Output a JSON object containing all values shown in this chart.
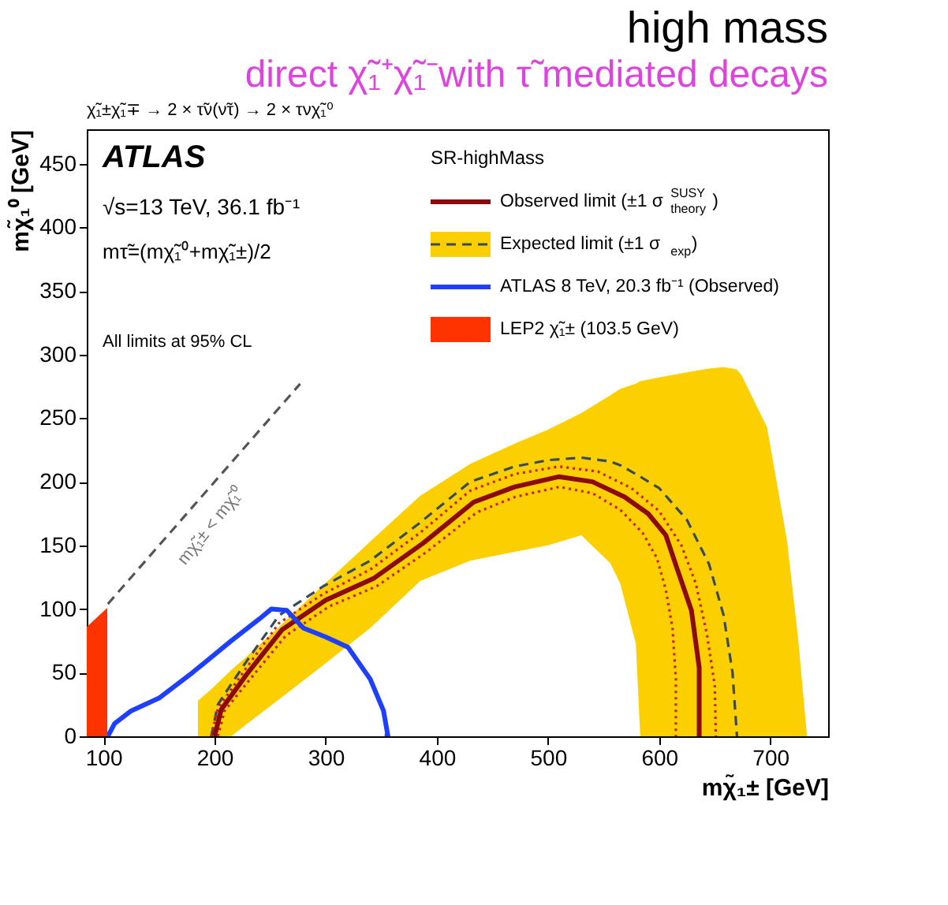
{
  "chart_data": {
    "type": "line",
    "title": "high mass",
    "subtitle": "direct χ̃₁⁺χ̃₁⁻with τ̃ mediated decays",
    "xlabel": "mχ̃₁± [GeV]",
    "ylabel": "mχ̃₁⁰ [GeV]",
    "legend_title": "SR-highMass",
    "legend": "top right",
    "xlim": [
      85,
      752
    ],
    "ylim": [
      0,
      477
    ],
    "xticks": [
      100,
      200,
      300,
      400,
      500,
      600,
      700
    ],
    "yticks": [
      0,
      50,
      100,
      150,
      200,
      250,
      300,
      350,
      400,
      450
    ],
    "grid": false,
    "annotations": [
      "χ̃₁±χ̃₁∓ → 2 × τ̃ν(ν̃τ) → 2 × τνχ̃₁⁰",
      "ATLAS",
      "√s=13 TeV, 36.1 fb⁻¹",
      "mτ̃=(mχ̃₁⁰+mχ̃₁±)/2",
      "All limits at 95% CL",
      "mχ̃₁± < mχ̃₁⁰"
    ],
    "series": [
      {
        "name": "Expected limit (±1 σ$_{exp}$)",
        "type": "line",
        "color": "#3a4a5a",
        "line_style": "dashed",
        "x": [
          185,
          197,
          203,
          215,
          228,
          258,
          298,
          340,
          385,
          430,
          470,
          500,
          530,
          556,
          565,
          579,
          583,
          600,
          625,
          645,
          658,
          666,
          670,
          674,
          697,
          715,
          725,
          733
        ],
        "values": [
          null,
          0,
          25,
          41,
          58,
          95,
          118,
          138,
          168,
          200,
          212,
          217,
          219,
          216,
          213,
          206,
          204,
          195,
          170,
          135,
          95,
          50,
          0,
          null,
          null,
          null,
          null,
          null
        ],
        "lower": [
          0,
          0,
          0,
          0,
          9,
          29,
          56,
          85,
          122,
          138,
          145,
          150,
          158,
          136,
          120,
          73,
          0,
          0,
          0,
          0,
          0,
          0,
          0,
          0,
          0,
          0,
          0,
          0
        ],
        "upper": [
          28,
          37,
          42,
          52,
          62,
          86,
          119,
          153,
          189,
          214,
          230,
          241,
          254,
          268,
          273,
          277,
          279,
          282,
          286,
          289,
          290,
          289,
          288,
          284,
          243,
          154,
          77,
          0
        ]
      },
      {
        "type": "line",
        "color": "#cc2020",
        "line_style": "dotted",
        "x": [
          197,
          203,
          228,
          258,
          298,
          340,
          385,
          430,
          470,
          510,
          545,
          575,
          600,
          620,
          633,
          643,
          650,
          651
        ],
        "values": [
          0,
          22,
          53,
          89,
          112,
          131,
          160,
          193,
          206,
          212,
          208,
          195,
          177,
          150,
          120,
          80,
          40,
          0
        ]
      },
      {
        "type": "line",
        "color": "#cc2020",
        "line_style": "dotted",
        "x": [
          203,
          209,
          233,
          264,
          303,
          346,
          391,
          436,
          470,
          510,
          540,
          565,
          585,
          598,
          606,
          612,
          615,
          615
        ],
        "values": [
          0,
          20,
          46,
          79,
          102,
          118,
          145,
          176,
          188,
          196,
          191,
          178,
          160,
          140,
          115,
          85,
          45,
          0
        ]
      },
      {
        "name": "Observed limit (±1 σ$^{SUSY}$$_{theory}$)",
        "type": "line",
        "color": "#8b0a0a",
        "line_style": "solid",
        "x": [
          200,
          206,
          230,
          261,
          300,
          343,
          388,
          433,
          470,
          510,
          540,
          569,
          590,
          606,
          616,
          629,
          636,
          636
        ],
        "values": [
          0,
          21,
          50,
          84,
          107,
          124,
          152,
          184,
          196,
          204,
          200,
          188,
          175,
          158,
          132,
          99,
          54,
          0
        ]
      },
      {
        "name": "ATLAS 8 TeV, 20.3 fb⁻¹ (Observed)",
        "type": "line",
        "color": "#1f3fff",
        "line_style": "solid",
        "x": [
          104,
          110,
          125,
          150,
          180,
          215,
          240,
          251,
          265,
          280,
          300,
          320,
          340,
          352,
          356,
          353
        ],
        "values": [
          0,
          10,
          20,
          30,
          50,
          75,
          92,
          100,
          99,
          85,
          78,
          70,
          45,
          20,
          0,
          0
        ]
      },
      {
        "name": "LEP2 χ̃₁± (103.5 GeV)",
        "type": "area",
        "color": "#ff3300",
        "x": [
          85,
          103.5
        ],
        "values": [
          86,
          101
        ]
      },
      {
        "type": "line",
        "color": "#555555",
        "line_style": "dashed",
        "x": [
          104,
          277
        ],
        "values": [
          104,
          277
        ]
      }
    ]
  }
}
